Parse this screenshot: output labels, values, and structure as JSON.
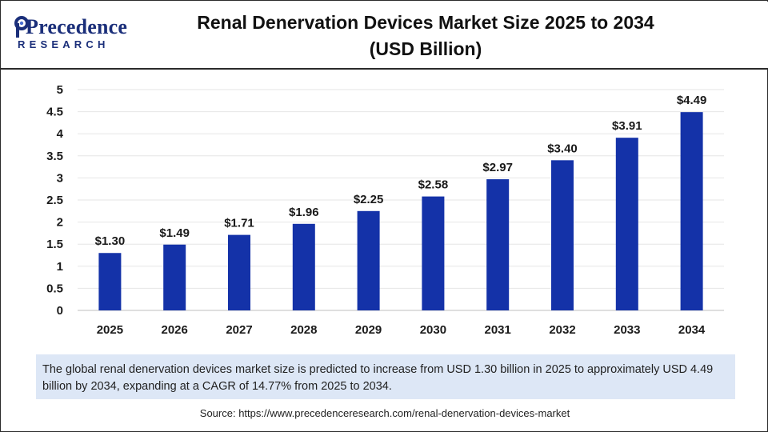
{
  "header": {
    "brand_name": "Precedence",
    "brand_sub": "RESEARCH",
    "title_line1": "Renal Denervation Devices Market Size 2025 to 2034",
    "title_line2": "(USD Billion)"
  },
  "colors": {
    "bar": "#1432a8",
    "brand": "#1b2f7a",
    "caption_bg": "#dde7f6",
    "grid": "#e6e6e6"
  },
  "chart_data": {
    "type": "bar",
    "title": "Renal Denervation Devices Market Size 2025 to 2034 (USD Billion)",
    "categories": [
      "2025",
      "2026",
      "2027",
      "2028",
      "2029",
      "2030",
      "2031",
      "2032",
      "2033",
      "2034"
    ],
    "values": [
      1.3,
      1.49,
      1.71,
      1.96,
      2.25,
      2.58,
      2.97,
      3.4,
      3.91,
      4.49
    ],
    "data_labels": [
      "$1.30",
      "$1.49",
      "$1.71",
      "$1.96",
      "$2.25",
      "$2.58",
      "$2.97",
      "$3.40",
      "$3.91",
      "$4.49"
    ],
    "y_ticks": [
      "0",
      "0.5",
      "1",
      "1.5",
      "2",
      "2.5",
      "3",
      "3.5",
      "4",
      "4.5",
      "5"
    ],
    "ylim": [
      0,
      5
    ],
    "xlabel": "",
    "ylabel": "",
    "grid": true,
    "legend": "none"
  },
  "caption": "The global renal denervation devices market size is predicted to increase from USD 1.30 billion in 2025 to approximately USD 4.49 billion by 2034, expanding at a CAGR of 14.77% from 2025 to 2034.",
  "source": "Source: https://www.precedenceresearch.com/renal-denervation-devices-market"
}
